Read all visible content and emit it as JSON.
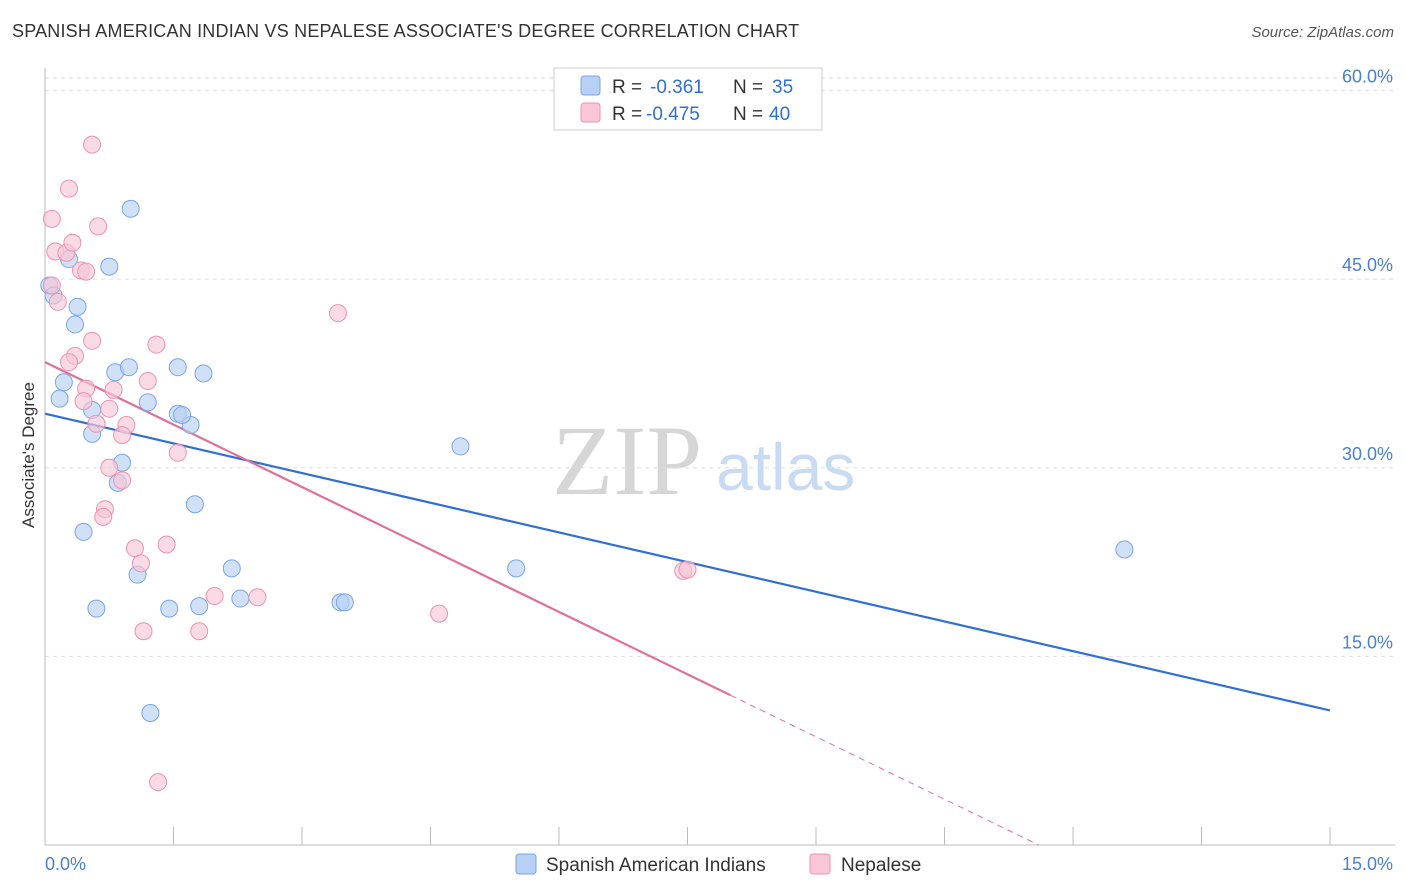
{
  "title": "SPANISH AMERICAN INDIAN VS NEPALESE ASSOCIATE'S DEGREE CORRELATION CHART",
  "source": "Source: ZipAtlas.com",
  "watermark": {
    "zip": "ZIP",
    "atlas": "atlas"
  },
  "colors": {
    "blue_fill": "#b7d0f3",
    "blue_stroke": "#7aa6e6",
    "blue_line": "#2f6fd6",
    "pink_fill": "#f8c6d6",
    "pink_stroke": "#ec93b0",
    "pink_line": "#e0709a",
    "grid": "#dddddd",
    "tick_text": "#4a7fd4"
  },
  "legend": {
    "rows": [
      {
        "r_label": "R =",
        "r_value": "-0.361",
        "n_label": "N =",
        "n_value": "35"
      },
      {
        "r_label": "R =",
        "r_value": "-0.475",
        "n_label": "N =",
        "n_value": "40"
      }
    ]
  },
  "chart_data": {
    "type": "scatter",
    "xlabel": "",
    "ylabel": "Associate's Degree",
    "xlim": [
      0,
      15
    ],
    "ylim": [
      0,
      61
    ],
    "x_tick_labels": [
      {
        "value": 0,
        "label": "0.0%"
      },
      {
        "value": 15,
        "label": "15.0%"
      }
    ],
    "y_tick_labels": [
      {
        "value": 15,
        "label": "15.0%"
      },
      {
        "value": 30,
        "label": "30.0%"
      },
      {
        "value": 45,
        "label": "45.0%"
      },
      {
        "value": 60,
        "label": "60.0%"
      }
    ],
    "series": [
      {
        "name": "Spanish American Indians",
        "color_key": "blue",
        "trend": {
          "x0": 0,
          "y0": 34.3,
          "x1": 15,
          "y1": 10.7,
          "dash_from": null
        },
        "points": [
          [
            0.05,
            44.5
          ],
          [
            0.1,
            43.7
          ],
          [
            0.28,
            46.6
          ],
          [
            0.38,
            42.8
          ],
          [
            0.22,
            36.8
          ],
          [
            0.17,
            35.5
          ],
          [
            0.35,
            41.4
          ],
          [
            0.75,
            46.0
          ],
          [
            1.0,
            50.6
          ],
          [
            0.55,
            34.6
          ],
          [
            0.82,
            37.6
          ],
          [
            0.98,
            38.0
          ],
          [
            1.2,
            35.2
          ],
          [
            1.55,
            38.0
          ],
          [
            1.85,
            37.5
          ],
          [
            1.55,
            34.3
          ],
          [
            1.7,
            33.4
          ],
          [
            1.6,
            34.2
          ],
          [
            0.55,
            32.7
          ],
          [
            0.9,
            30.4
          ],
          [
            0.85,
            28.8
          ],
          [
            0.45,
            24.9
          ],
          [
            1.75,
            27.1
          ],
          [
            1.08,
            21.5
          ],
          [
            0.6,
            18.8
          ],
          [
            1.45,
            18.8
          ],
          [
            1.8,
            19.0
          ],
          [
            2.18,
            22.0
          ],
          [
            2.28,
            19.6
          ],
          [
            3.45,
            19.3
          ],
          [
            3.5,
            19.3
          ],
          [
            4.85,
            31.7
          ],
          [
            5.5,
            22.0
          ],
          [
            12.6,
            23.5
          ],
          [
            1.23,
            10.5
          ]
        ]
      },
      {
        "name": "Nepalese",
        "color_key": "pink",
        "trend": {
          "x0": 0,
          "y0": 38.4,
          "x1": 11.6,
          "y1": 0,
          "dash_from": 8.0
        },
        "points": [
          [
            0.08,
            49.8
          ],
          [
            0.12,
            47.2
          ],
          [
            0.25,
            47.1
          ],
          [
            0.55,
            55.7
          ],
          [
            0.28,
            52.2
          ],
          [
            0.62,
            49.2
          ],
          [
            0.32,
            47.9
          ],
          [
            0.42,
            45.7
          ],
          [
            0.48,
            45.6
          ],
          [
            0.15,
            43.2
          ],
          [
            0.55,
            40.1
          ],
          [
            0.35,
            38.9
          ],
          [
            0.28,
            38.4
          ],
          [
            0.48,
            36.3
          ],
          [
            0.8,
            36.2
          ],
          [
            0.45,
            35.3
          ],
          [
            0.75,
            34.7
          ],
          [
            0.6,
            33.5
          ],
          [
            0.95,
            33.4
          ],
          [
            0.9,
            32.6
          ],
          [
            1.2,
            36.9
          ],
          [
            1.3,
            39.8
          ],
          [
            1.55,
            31.2
          ],
          [
            0.75,
            30.0
          ],
          [
            0.9,
            29.0
          ],
          [
            0.7,
            26.7
          ],
          [
            0.68,
            26.1
          ],
          [
            1.05,
            23.6
          ],
          [
            1.12,
            22.4
          ],
          [
            1.42,
            23.9
          ],
          [
            3.42,
            42.3
          ],
          [
            1.98,
            19.8
          ],
          [
            2.48,
            19.7
          ],
          [
            1.8,
            17.0
          ],
          [
            1.15,
            17.0
          ],
          [
            4.6,
            18.4
          ],
          [
            7.45,
            21.8
          ],
          [
            7.5,
            21.9
          ],
          [
            1.32,
            5.0
          ],
          [
            0.08,
            44.5
          ]
        ]
      }
    ]
  }
}
